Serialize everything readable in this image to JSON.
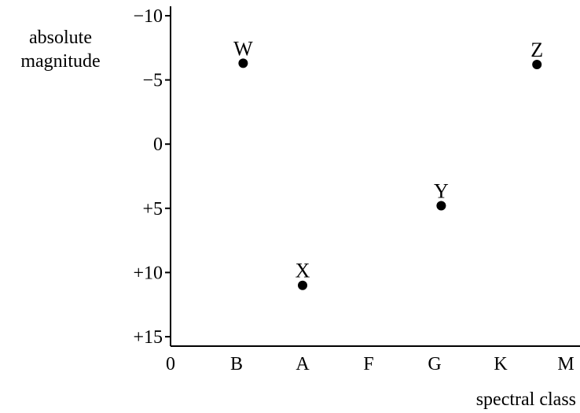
{
  "chart_data": {
    "type": "scatter",
    "ylabel_lines": [
      "absolute",
      "magnitude"
    ],
    "xlabel": "spectral class",
    "x_ticks": [
      "0",
      "B",
      "A",
      "F",
      "G",
      "K",
      "M"
    ],
    "y_ticks": [
      "−10",
      "−5",
      "0",
      "+5",
      "+10",
      "+15"
    ],
    "y_tick_values": [
      -10,
      -5,
      0,
      5,
      10,
      15
    ],
    "ylim": [
      -10,
      15
    ],
    "y_inverted": true,
    "grid": false,
    "points": [
      {
        "label": "W",
        "x_class_index": 1.1,
        "y": -6.3
      },
      {
        "label": "X",
        "x_class_index": 2.0,
        "y": 11.0
      },
      {
        "label": "Y",
        "x_class_index": 4.1,
        "y": 4.8
      },
      {
        "label": "Z",
        "x_class_index": 5.55,
        "y": -6.2
      }
    ]
  }
}
